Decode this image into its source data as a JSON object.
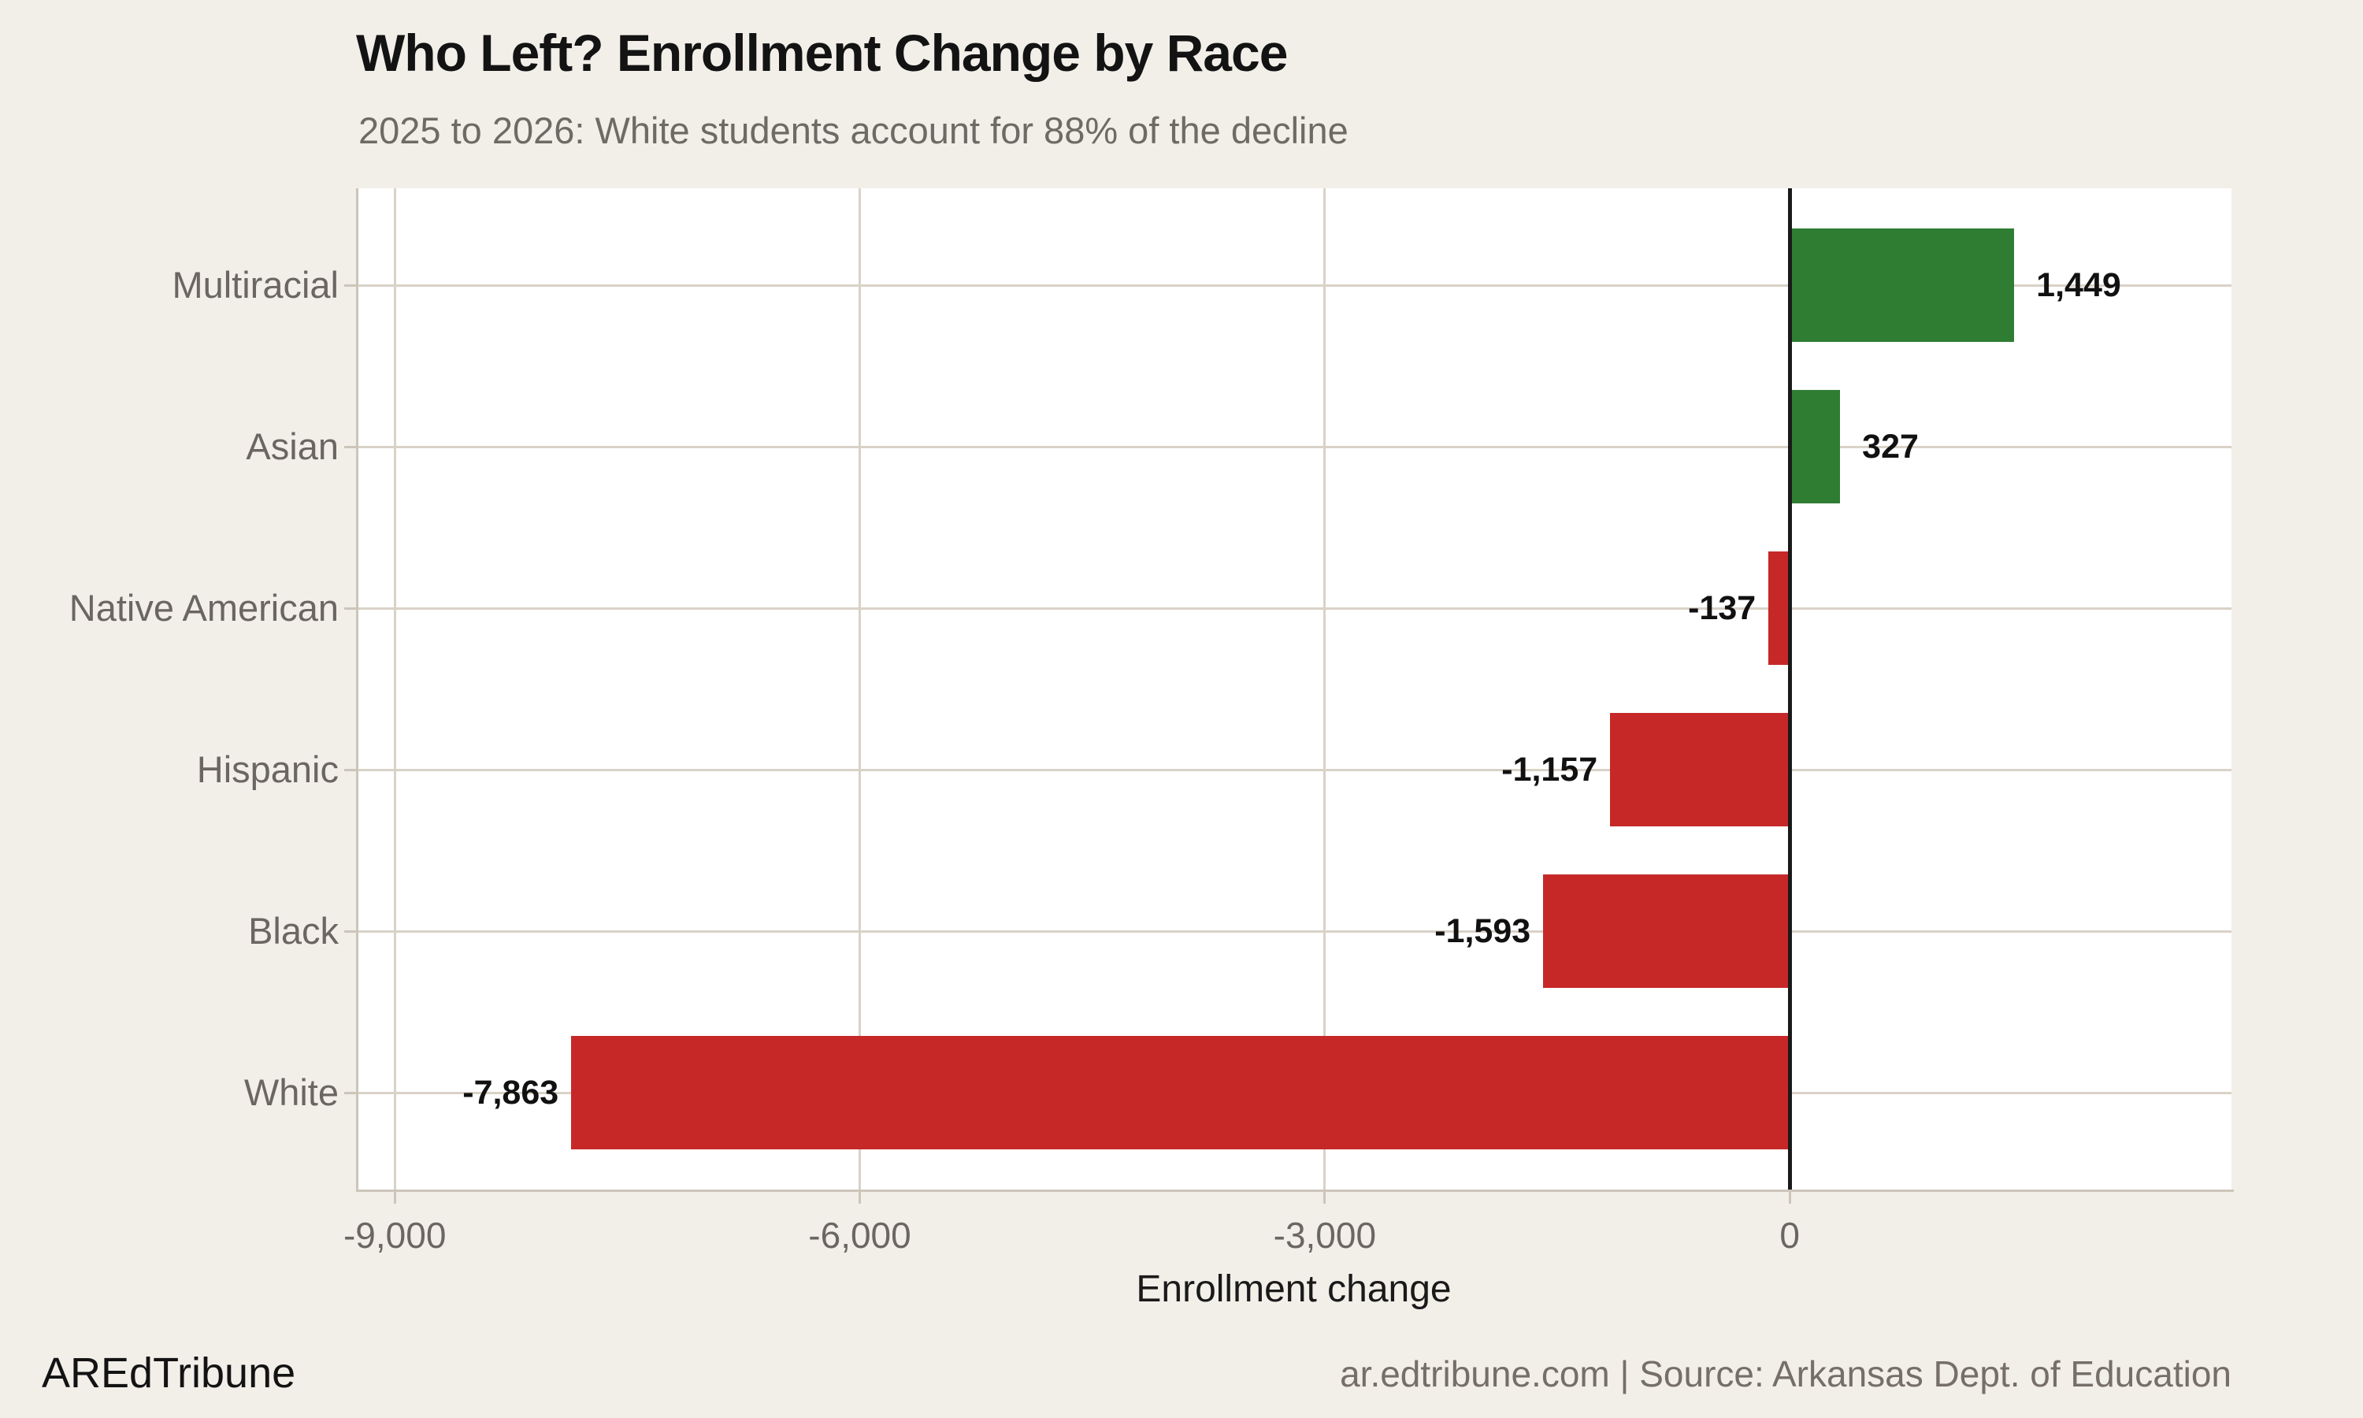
{
  "header": {
    "title": "Who Left? Enrollment Change by Race",
    "subtitle": "2025 to 2026: White students account for 88% of the decline"
  },
  "chart_data": {
    "type": "bar",
    "orientation": "horizontal",
    "title": "Who Left? Enrollment Change by Race",
    "subtitle": "2025 to 2026: White students account for 88% of the decline",
    "categories": [
      "Multiracial",
      "Asian",
      "Native American",
      "Hispanic",
      "Black",
      "White"
    ],
    "values": [
      1449,
      327,
      -137,
      -1157,
      -1593,
      -7863
    ],
    "value_labels": [
      "1,449",
      "327",
      "-137",
      "-1,157",
      "-1,593",
      "-7,863"
    ],
    "xlabel": "Enrollment change",
    "ylabel": "",
    "x_ticks": [
      -9000,
      -6000,
      -3000,
      0
    ],
    "x_tick_labels": [
      "-9,000",
      "-6,000",
      "-3,000",
      "0"
    ],
    "xlim": [
      -9250,
      2850
    ],
    "grid": true,
    "legend": false,
    "colors": {
      "positive": "#2E7D32",
      "negative": "#C62828",
      "background": "#F2EFE9",
      "panel": "#FFFFFF",
      "gridline": "#D9D2C7",
      "zero_line": "#1A1A1A"
    }
  },
  "footer": {
    "brand": "AREdTribune",
    "source": "ar.edtribune.com | Source: Arkansas Dept. of Education"
  }
}
